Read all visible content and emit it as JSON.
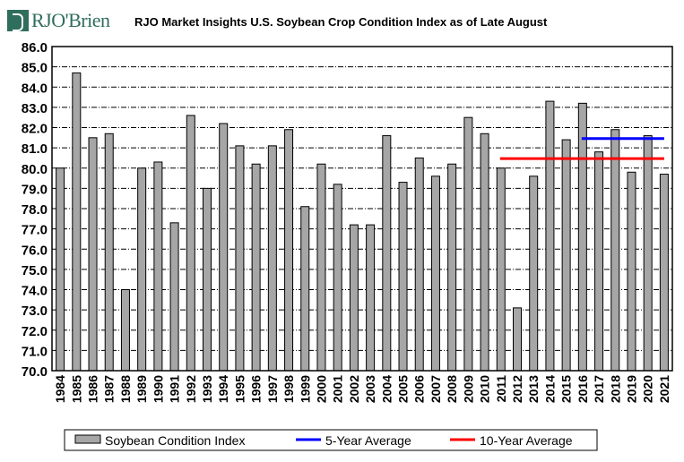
{
  "logo_text": "RJO'Brien",
  "chart_data": {
    "type": "bar",
    "title": "RJO Market Insights U.S. Soybean Crop Condition Index as of Late August",
    "xlabel": "",
    "ylabel": "",
    "ylim": [
      70,
      86
    ],
    "yticks": [
      "70.0",
      "71.0",
      "72.0",
      "73.0",
      "74.0",
      "75.0",
      "76.0",
      "77.0",
      "78.0",
      "79.0",
      "80.0",
      "81.0",
      "82.0",
      "83.0",
      "84.0",
      "85.0",
      "86.0"
    ],
    "grid": true,
    "legend_position": "bottom",
    "categories": [
      "1984",
      "1985",
      "1986",
      "1987",
      "1988",
      "1989",
      "1990",
      "1991",
      "1992",
      "1993",
      "1994",
      "1995",
      "1996",
      "1997",
      "1998",
      "1999",
      "2000",
      "2001",
      "2002",
      "2003",
      "2004",
      "2005",
      "2006",
      "2007",
      "2008",
      "2009",
      "2010",
      "2011",
      "2012",
      "2013",
      "2014",
      "2015",
      "2016",
      "2017",
      "2018",
      "2019",
      "2020",
      "2021"
    ],
    "series": [
      {
        "name": "Soybean Condition Index",
        "type": "bar",
        "color": "#a6a6a6",
        "values": [
          80.0,
          84.7,
          81.5,
          81.7,
          74.0,
          80.0,
          80.3,
          77.3,
          82.6,
          79.0,
          82.2,
          81.1,
          80.2,
          81.1,
          81.9,
          78.1,
          80.2,
          79.2,
          77.2,
          77.2,
          81.6,
          79.3,
          80.5,
          79.6,
          80.2,
          82.5,
          81.7,
          80.0,
          73.1,
          79.6,
          83.3,
          81.4,
          83.2,
          80.8,
          81.9,
          79.8,
          81.6,
          79.7
        ]
      },
      {
        "name": "5-Year Average",
        "type": "line",
        "color": "#0000ff",
        "value": 81.46,
        "from": "2016",
        "to": "2021"
      },
      {
        "name": "10-Year Average",
        "type": "line",
        "color": "#ff0000",
        "value": 80.47,
        "from": "2011",
        "to": "2021"
      }
    ]
  }
}
